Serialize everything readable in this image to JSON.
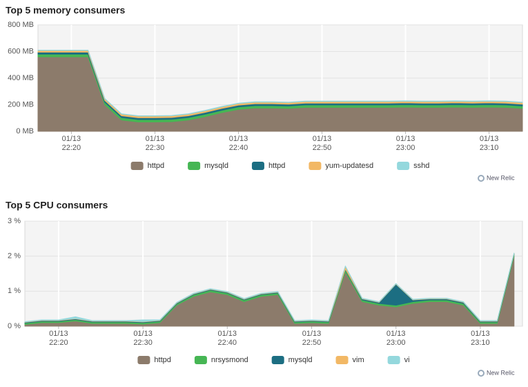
{
  "chart_data": [
    {
      "type": "stacked-area",
      "title": "Top 5 memory consumers",
      "credit": "New Relic",
      "x": [
        "01/13 22:16",
        "01/13 22:18",
        "01/13 22:20",
        "01/13 22:22",
        "01/13 22:24",
        "01/13 22:26",
        "01/13 22:28",
        "01/13 22:30",
        "01/13 22:32",
        "01/13 22:34",
        "01/13 22:36",
        "01/13 22:38",
        "01/13 22:40",
        "01/13 22:42",
        "01/13 22:44",
        "01/13 22:46",
        "01/13 22:48",
        "01/13 22:50",
        "01/13 22:52",
        "01/13 22:54",
        "01/13 22:56",
        "01/13 22:58",
        "01/13 23:00",
        "01/13 23:02",
        "01/13 23:04",
        "01/13 23:06",
        "01/13 23:08",
        "01/13 23:10",
        "01/13 23:12",
        "01/13 23:14"
      ],
      "xlim": [
        "01/13 22:16",
        "01/13 23:14"
      ],
      "xticks": [
        "01/13 22:20",
        "01/13 22:30",
        "01/13 22:40",
        "01/13 22:50",
        "01/13 23:00",
        "01/13 23:10"
      ],
      "ylim": [
        0,
        800
      ],
      "yticks": [
        {
          "value": 0,
          "label": "0 MB"
        },
        {
          "value": 200,
          "label": "200 MB"
        },
        {
          "value": 400,
          "label": "400 MB"
        },
        {
          "value": 600,
          "label": "600 MB"
        },
        {
          "value": 800,
          "label": "800 MB"
        }
      ],
      "grid": true,
      "series": [
        {
          "name": "httpd",
          "color": "#8c7b6b",
          "values": [
            560,
            560,
            560,
            560,
            200,
            85,
            70,
            70,
            72,
            85,
            110,
            140,
            165,
            175,
            175,
            172,
            180,
            180,
            180,
            180,
            180,
            180,
            182,
            180,
            180,
            182,
            180,
            182,
            180,
            172
          ]
        },
        {
          "name": "mysqld",
          "color": "#46b654",
          "values": [
            20,
            20,
            20,
            20,
            18,
            18,
            18,
            18,
            18,
            18,
            18,
            18,
            18,
            18,
            18,
            18,
            18,
            18,
            18,
            18,
            18,
            18,
            18,
            18,
            18,
            18,
            18,
            18,
            18,
            18
          ]
        },
        {
          "name": "httpd",
          "color": "#1c6e82",
          "values": [
            15,
            15,
            15,
            15,
            14,
            14,
            14,
            14,
            14,
            14,
            14,
            14,
            14,
            14,
            14,
            14,
            14,
            14,
            14,
            14,
            14,
            14,
            14,
            14,
            14,
            14,
            14,
            14,
            14,
            14
          ]
        },
        {
          "name": "yum-updatesd",
          "color": "#f2b865",
          "values": [
            12,
            12,
            12,
            12,
            12,
            12,
            12,
            12,
            12,
            12,
            12,
            12,
            12,
            12,
            12,
            12,
            12,
            12,
            12,
            12,
            12,
            12,
            12,
            12,
            12,
            12,
            12,
            12,
            12,
            12
          ]
        },
        {
          "name": "sshd",
          "color": "#94d8dd",
          "values": [
            3,
            3,
            3,
            3,
            3,
            3,
            3,
            3,
            3,
            3,
            3,
            3,
            3,
            3,
            3,
            3,
            3,
            3,
            3,
            3,
            3,
            3,
            3,
            3,
            3,
            3,
            3,
            3,
            3,
            3
          ]
        }
      ]
    },
    {
      "type": "stacked-area",
      "title": "Top 5 CPU consumers",
      "credit": "New Relic",
      "x": [
        "01/13 22:16",
        "01/13 22:18",
        "01/13 22:20",
        "01/13 22:22",
        "01/13 22:24",
        "01/13 22:26",
        "01/13 22:28",
        "01/13 22:30",
        "01/13 22:32",
        "01/13 22:34",
        "01/13 22:36",
        "01/13 22:38",
        "01/13 22:40",
        "01/13 22:42",
        "01/13 22:44",
        "01/13 22:46",
        "01/13 22:48",
        "01/13 22:50",
        "01/13 22:52",
        "01/13 22:54",
        "01/13 22:56",
        "01/13 22:58",
        "01/13 23:00",
        "01/13 23:02",
        "01/13 23:04",
        "01/13 23:06",
        "01/13 23:08",
        "01/13 23:10",
        "01/13 23:12",
        "01/13 23:14"
      ],
      "xlim": [
        "01/13 22:16",
        "01/13 23:15"
      ],
      "xticks": [
        "01/13 22:20",
        "01/13 22:30",
        "01/13 22:40",
        "01/13 22:50",
        "01/13 23:00",
        "01/13 23:10"
      ],
      "ylim": [
        0,
        3
      ],
      "yticks": [
        {
          "value": 0,
          "label": "0 %"
        },
        {
          "value": 1,
          "label": "1 %"
        },
        {
          "value": 2,
          "label": "2 %"
        },
        {
          "value": 3,
          "label": "3 %"
        }
      ],
      "grid": true,
      "series": [
        {
          "name": "httpd",
          "color": "#8c7b6b",
          "values": [
            0.05,
            0.1,
            0.1,
            0.15,
            0.08,
            0.08,
            0.08,
            0.06,
            0.1,
            0.6,
            0.85,
            0.98,
            0.9,
            0.7,
            0.85,
            0.9,
            0.08,
            0.1,
            0.08,
            1.55,
            0.7,
            0.6,
            0.55,
            0.65,
            0.7,
            0.7,
            0.6,
            0.08,
            0.08,
            2.0
          ]
        },
        {
          "name": "nrsysmond",
          "color": "#46b654",
          "values": [
            0.04,
            0.04,
            0.04,
            0.04,
            0.04,
            0.04,
            0.04,
            0.04,
            0.04,
            0.04,
            0.05,
            0.05,
            0.05,
            0.05,
            0.05,
            0.05,
            0.04,
            0.04,
            0.04,
            0.06,
            0.05,
            0.05,
            0.05,
            0.05,
            0.05,
            0.05,
            0.05,
            0.04,
            0.04,
            0.05
          ]
        },
        {
          "name": "mysqld",
          "color": "#1c6e82",
          "values": [
            0.02,
            0.02,
            0.02,
            0.02,
            0.02,
            0.02,
            0.02,
            0.02,
            0.02,
            0.02,
            0.02,
            0.02,
            0.02,
            0.02,
            0.02,
            0.02,
            0.02,
            0.02,
            0.02,
            0.02,
            0.03,
            0.03,
            0.6,
            0.05,
            0.03,
            0.03,
            0.03,
            0.02,
            0.02,
            0.02
          ]
        },
        {
          "name": "vim",
          "color": "#f2b865",
          "values": [
            0.01,
            0.01,
            0.01,
            0.01,
            0.01,
            0.01,
            0.01,
            0.01,
            0.01,
            0.01,
            0.01,
            0.01,
            0.01,
            0.01,
            0.01,
            0.01,
            0.01,
            0.01,
            0.01,
            0.08,
            0.01,
            0.01,
            0.01,
            0.01,
            0.01,
            0.01,
            0.01,
            0.01,
            0.01,
            0.01
          ]
        },
        {
          "name": "vi",
          "color": "#94d8dd",
          "values": [
            0.01,
            0.01,
            0.01,
            0.05,
            0.01,
            0.01,
            0.01,
            0.05,
            0.01,
            0.01,
            0.01,
            0.01,
            0.01,
            0.01,
            0.01,
            0.01,
            0.01,
            0.01,
            0.01,
            0.01,
            0.01,
            0.01,
            0.01,
            0.01,
            0.01,
            0.01,
            0.01,
            0.01,
            0.01,
            0.01
          ]
        }
      ]
    }
  ]
}
